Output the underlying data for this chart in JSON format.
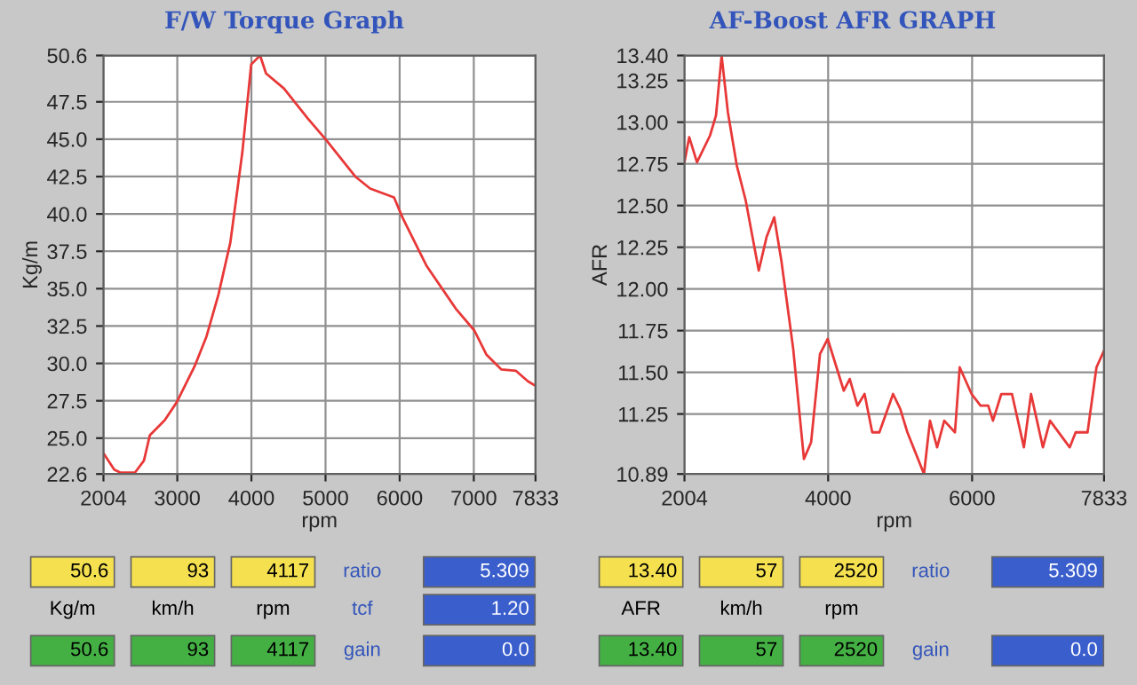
{
  "chart_data": [
    {
      "type": "line",
      "title": "F/W Torque Graph",
      "xlabel": "rpm",
      "ylabel": "Kg/m",
      "x": [
        2004,
        2149,
        2229,
        2430,
        2550,
        2630,
        2831,
        2992,
        3233,
        3394,
        3555,
        3716,
        3877,
        3997,
        4117,
        4197,
        4438,
        4759,
        5000,
        5401,
        5602,
        5924,
        6044,
        6366,
        6767,
        7008,
        7169,
        7370,
        7570,
        7731,
        7833
      ],
      "series": [
        {
          "color": "#e83838",
          "values": [
            24.0,
            22.9,
            22.7,
            22.7,
            23.5,
            25.2,
            26.2,
            27.4,
            29.8,
            31.8,
            34.6,
            38.1,
            44.1,
            50.0,
            50.6,
            49.4,
            48.4,
            46.4,
            45.0,
            42.5,
            41.7,
            41.1,
            39.7,
            36.5,
            33.6,
            32.2,
            30.6,
            29.6,
            29.5,
            28.8,
            28.5
          ]
        }
      ],
      "xlim": [
        2004,
        7833
      ],
      "xticks": [
        2004,
        3000,
        4000,
        5000,
        6000,
        7000,
        7833
      ],
      "ylim": [
        22.6,
        50.6
      ],
      "yticks": [
        22.6,
        {
          "value": 25,
          "label": "25.0"
        },
        27.5,
        {
          "value": 30,
          "label": "30.0"
        },
        32.5,
        {
          "value": 35,
          "label": "35.0"
        },
        37.5,
        {
          "value": 40,
          "label": "40.0"
        },
        42.5,
        {
          "value": 45,
          "label": "45.0"
        },
        47.5,
        50.6
      ],
      "grid": true,
      "annotations": [
        "50.6",
        "93",
        "4117",
        "ratio",
        "5.309",
        "Kg/m",
        "km/h",
        "rpm",
        "tcf",
        "1.20",
        "50.6",
        "93",
        "4117",
        "gain",
        "0.0"
      ]
    },
    {
      "type": "line",
      "title": "AF-Boost AFR GRAPH",
      "xlabel": "rpm",
      "ylabel": "AFR",
      "x": [
        2004,
        2070,
        2178,
        2359,
        2442,
        2520,
        2607,
        2731,
        2855,
        3036,
        3144,
        3251,
        3350,
        3515,
        3664,
        3763,
        3887,
        3994,
        4217,
        4300,
        4407,
        4506,
        4613,
        4712,
        4902,
        5002,
        5101,
        5332,
        5415,
        5514,
        5613,
        5762,
        5828,
        5993,
        6117,
        6224,
        6290,
        6406,
        6554,
        6720,
        6819,
        6984,
        7083,
        7356,
        7439,
        7604,
        7728,
        7833
      ],
      "series": [
        {
          "color": "#e83838",
          "values": [
            12.76,
            12.91,
            12.76,
            12.92,
            13.04,
            13.4,
            13.06,
            12.74,
            12.53,
            12.11,
            12.31,
            12.43,
            12.17,
            11.64,
            10.98,
            11.08,
            11.61,
            11.7,
            11.39,
            11.46,
            11.3,
            11.37,
            11.14,
            11.14,
            11.37,
            11.28,
            11.14,
            10.89,
            11.21,
            11.05,
            11.21,
            11.14,
            11.53,
            11.37,
            11.3,
            11.3,
            11.21,
            11.37,
            11.37,
            11.05,
            11.37,
            11.05,
            11.21,
            11.05,
            11.14,
            11.14,
            11.53,
            11.63
          ]
        }
      ],
      "xlim": [
        2004,
        7833
      ],
      "xticks": [
        2004,
        4000,
        6000,
        7833
      ],
      "ylim": [
        10.89,
        13.4
      ],
      "yticks": [
        10.89,
        11.25,
        {
          "value": 11.5,
          "label": "11.50"
        },
        11.75,
        {
          "value": 12,
          "label": "12.00"
        },
        12.25,
        {
          "value": 12.5,
          "label": "12.50"
        },
        12.75,
        {
          "value": 13,
          "label": "13.00"
        },
        13.25,
        {
          "value": 13.4,
          "label": "13.40"
        }
      ],
      "grid": true,
      "annotations": [
        "13.40",
        "57",
        "2520",
        "ratio",
        "5.309",
        "AFR",
        "km/h",
        "rpm",
        "13.40",
        "57",
        "2520",
        "gain",
        "0.0"
      ]
    }
  ]
}
